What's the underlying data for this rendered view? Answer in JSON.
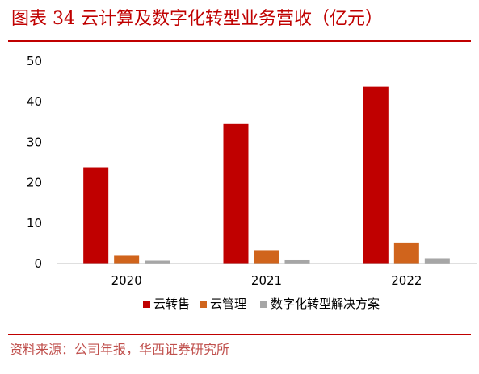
{
  "title": "图表 34  云计算及数字化转型业务营收（亿元）",
  "source": "资料来源：公司年报，华西证券研究所",
  "colors": {
    "accent": "#c00000",
    "series": [
      "#c00000",
      "#d0641c",
      "#a6a6a6"
    ]
  },
  "chart_data": {
    "type": "bar",
    "categories": [
      "2020",
      "2021",
      "2022"
    ],
    "series": [
      {
        "name": "云转售",
        "values": [
          23.8,
          34.5,
          43.7
        ]
      },
      {
        "name": "云管理",
        "values": [
          2.1,
          3.3,
          5.2
        ]
      },
      {
        "name": "数字化转型解决方案",
        "values": [
          0.7,
          1.0,
          1.3
        ]
      }
    ],
    "ylim": [
      0,
      50
    ],
    "yticks": [
      0,
      10,
      20,
      30,
      40,
      50
    ],
    "xlabel": "",
    "ylabel": "",
    "grid": false,
    "legend": "bottom"
  }
}
